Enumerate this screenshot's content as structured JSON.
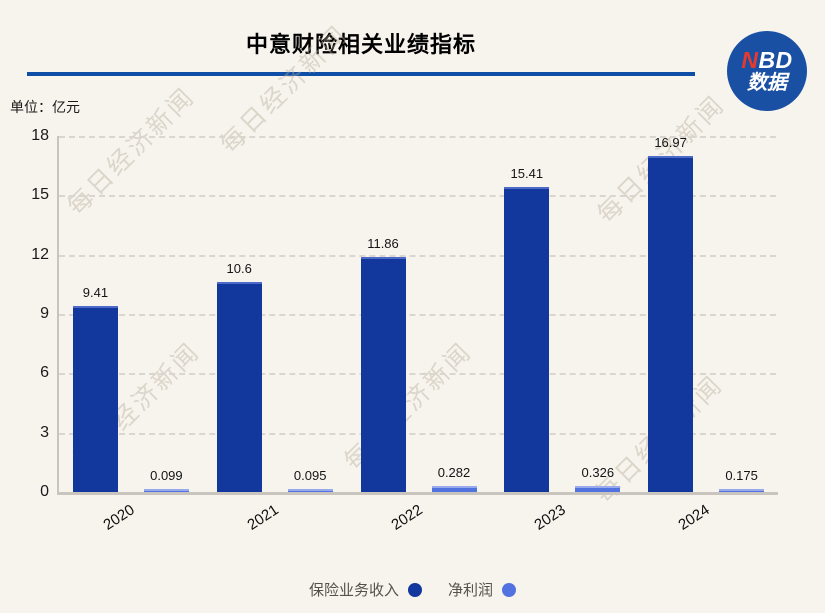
{
  "header": {
    "title": "中意财险相关业绩指标",
    "logo": {
      "n_red": "N",
      "bd_white": "BD",
      "line2": "数据"
    }
  },
  "chart": {
    "unit_label": "单位：亿元"
  },
  "chart_data": {
    "type": "bar",
    "title": "中意财险相关业绩指标",
    "unit": "亿元",
    "categories": [
      "2020",
      "2021",
      "2022",
      "2023",
      "2024"
    ],
    "series": [
      {
        "name": "保险业务收入",
        "color": "#12389d",
        "values": [
          9.41,
          10.6,
          11.86,
          15.41,
          16.97
        ]
      },
      {
        "name": "净利润",
        "color": "#5273df",
        "values": [
          0.099,
          0.095,
          0.282,
          0.326,
          0.175
        ]
      }
    ],
    "ylim": [
      0,
      18
    ],
    "yticks": [
      0,
      3,
      6,
      9,
      12,
      15,
      18
    ],
    "grid": "horizontal-dashed",
    "legend_position": "bottom"
  },
  "watermark": {
    "text": "每日经济新闻"
  },
  "colors": {
    "background": "#f7f4ee",
    "title_rule": "#0d4fa6",
    "logo_circle": "#1a50a3",
    "logo_red": "#e8392c",
    "bar_primary": "#12389d",
    "bar_secondary": "#5273df"
  }
}
